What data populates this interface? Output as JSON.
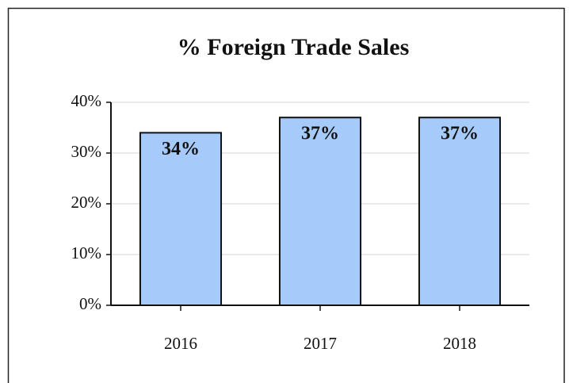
{
  "chart_data": {
    "type": "bar",
    "title": "% Foreign Trade Sales",
    "categories": [
      "2016",
      "2017",
      "2018"
    ],
    "values": [
      34,
      37,
      37
    ],
    "value_labels": [
      "34%",
      "37%",
      "37%"
    ],
    "color": "#a6cbfa",
    "ylim": [
      0,
      40
    ],
    "yticks": [
      {
        "value": 0,
        "label": "0%"
      },
      {
        "value": 10,
        "label": "10%"
      },
      {
        "value": 20,
        "label": "20%"
      },
      {
        "value": 30,
        "label": "30%"
      },
      {
        "value": 40,
        "label": "40%"
      }
    ],
    "grid": true
  }
}
